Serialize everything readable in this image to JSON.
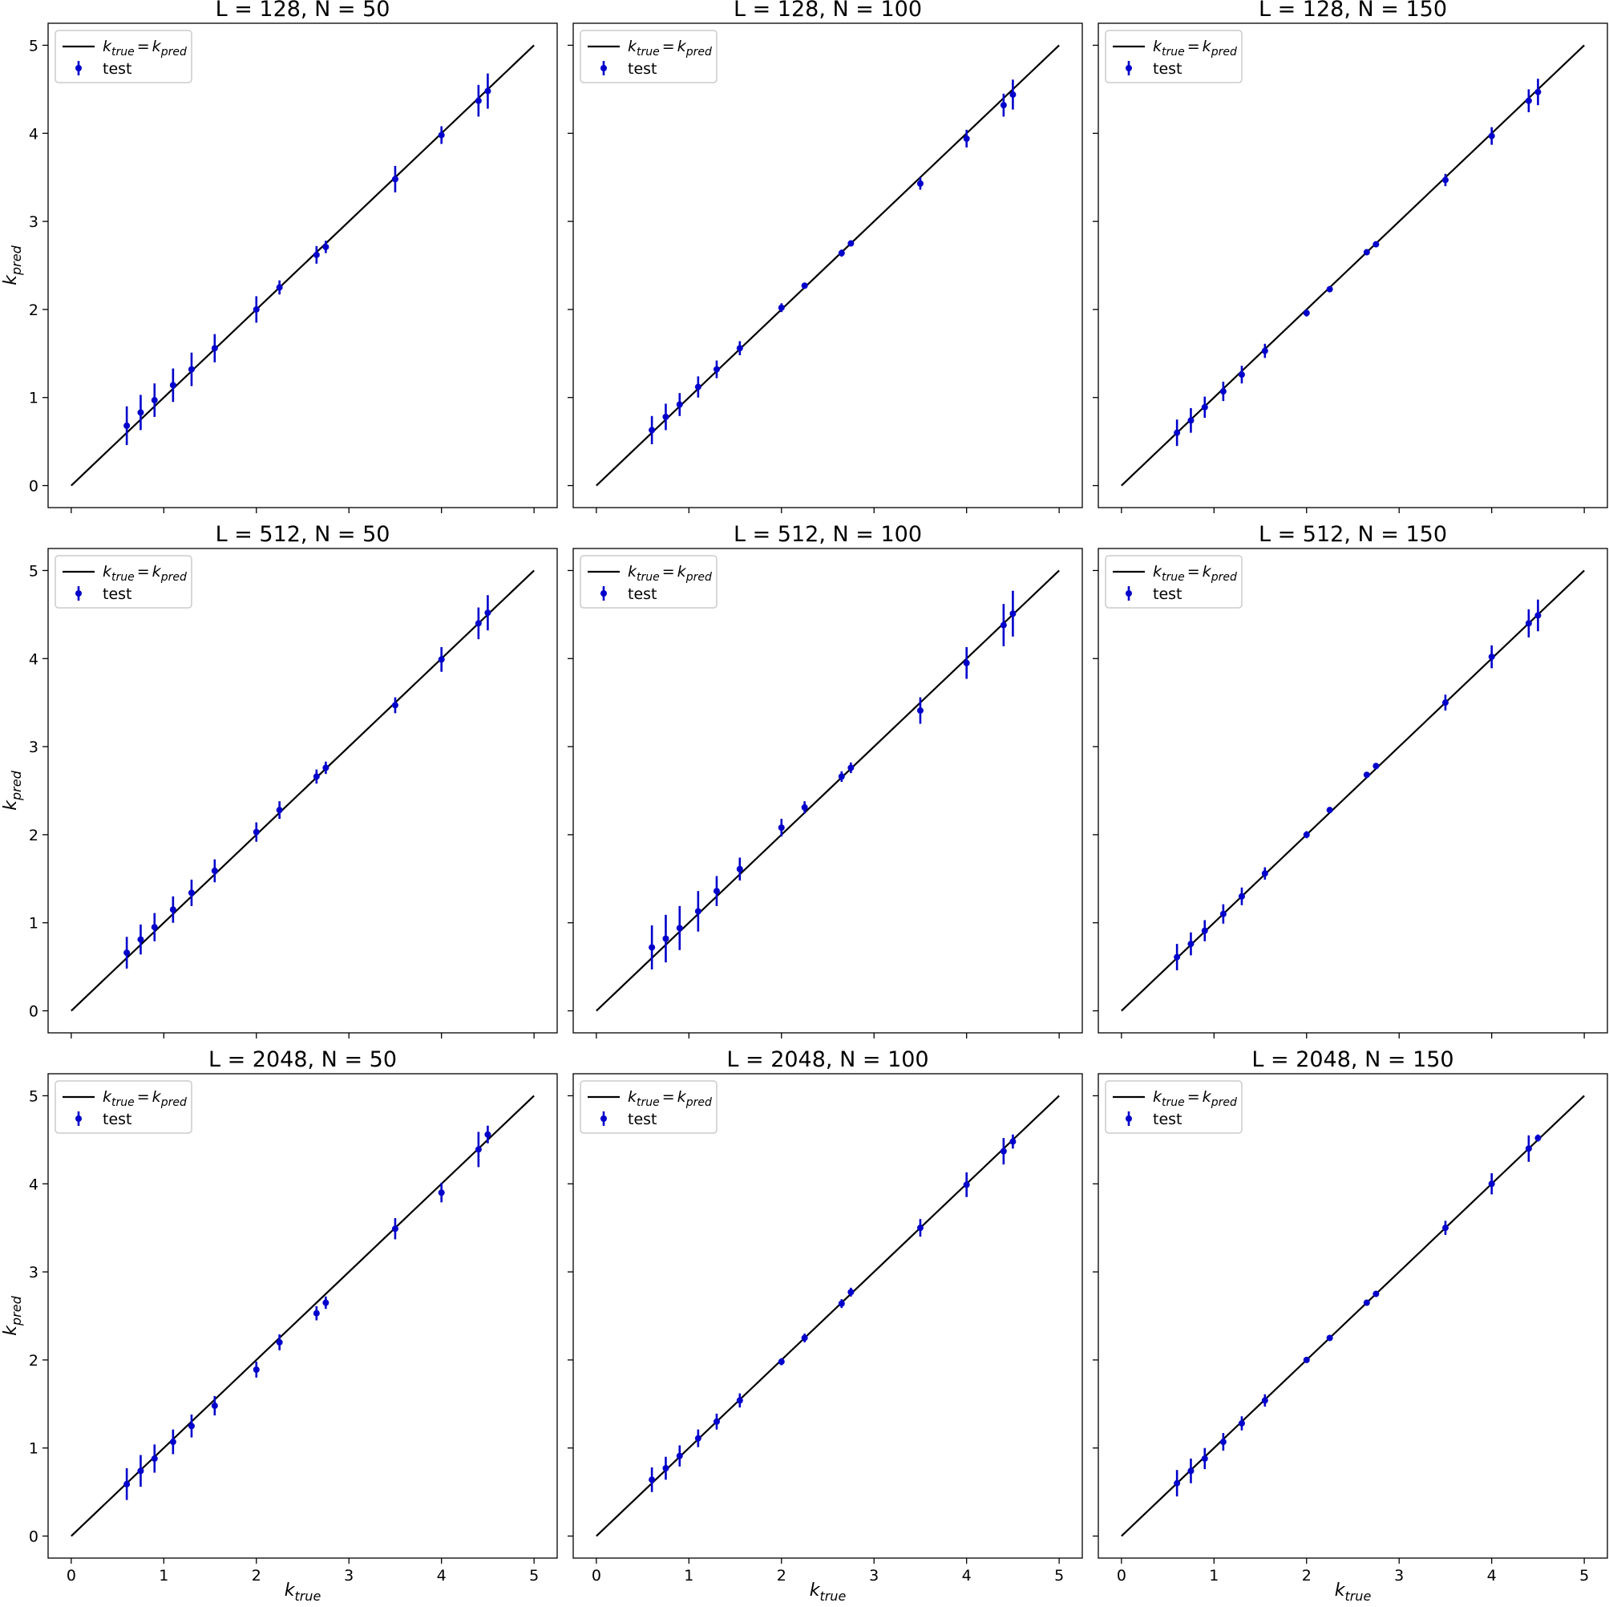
{
  "figure": {
    "ylabel_main": "k",
    "ylabel_sub": "pred",
    "xlabel_main": "k",
    "xlabel_sub": "true"
  },
  "legend": {
    "line_label": "k_true = k_pred",
    "line_left_main": "k",
    "line_left_sub": "true",
    "line_eq": "=",
    "line_right_main": "k",
    "line_right_sub": "pred",
    "points_label": "test"
  },
  "colors": {
    "points": "#0000cc",
    "line": "#000000",
    "frame": "#000000",
    "legend_border": "#cccccc"
  },
  "chart_data": [
    {
      "type": "scatter",
      "title": "L = 128, N = 50",
      "xlabel": "k_true",
      "ylabel": "k_pred",
      "xlim": [
        -0.25,
        5.25
      ],
      "ylim": [
        -0.25,
        5.25
      ],
      "xticks": [
        0,
        1,
        2,
        3,
        4,
        5
      ],
      "yticks": [
        0,
        1,
        2,
        3,
        4,
        5
      ],
      "grid": false,
      "legend": "top-left",
      "x": [
        0.6,
        0.75,
        0.9,
        1.1,
        1.3,
        1.55,
        2.0,
        2.25,
        2.65,
        2.75,
        3.5,
        4.0,
        4.4,
        4.5
      ],
      "y": [
        0.68,
        0.83,
        0.97,
        1.14,
        1.32,
        1.56,
        2.0,
        2.25,
        2.62,
        2.71,
        3.48,
        3.98,
        4.37,
        4.48
      ],
      "err": [
        0.22,
        0.2,
        0.19,
        0.19,
        0.19,
        0.16,
        0.15,
        0.08,
        0.1,
        0.07,
        0.15,
        0.1,
        0.18,
        0.2
      ]
    },
    {
      "type": "scatter",
      "title": "L = 128, N = 100",
      "xlabel": "k_true",
      "ylabel": "k_pred",
      "xlim": [
        -0.25,
        5.25
      ],
      "ylim": [
        -0.25,
        5.25
      ],
      "xticks": [
        0,
        1,
        2,
        3,
        4,
        5
      ],
      "yticks": [
        0,
        1,
        2,
        3,
        4,
        5
      ],
      "grid": false,
      "legend": "top-left",
      "x": [
        0.6,
        0.75,
        0.9,
        1.1,
        1.3,
        1.55,
        2.0,
        2.25,
        2.65,
        2.75,
        3.5,
        4.0,
        4.4,
        4.5
      ],
      "y": [
        0.63,
        0.78,
        0.92,
        1.12,
        1.32,
        1.56,
        2.02,
        2.27,
        2.64,
        2.75,
        3.43,
        3.94,
        4.32,
        4.44
      ],
      "err": [
        0.16,
        0.15,
        0.13,
        0.12,
        0.1,
        0.08,
        0.05,
        0.03,
        0.04,
        0.03,
        0.07,
        0.1,
        0.13,
        0.17
      ]
    },
    {
      "type": "scatter",
      "title": "L = 128, N = 150",
      "xlabel": "k_true",
      "ylabel": "k_pred",
      "xlim": [
        -0.25,
        5.25
      ],
      "ylim": [
        -0.25,
        5.25
      ],
      "xticks": [
        0,
        1,
        2,
        3,
        4,
        5
      ],
      "yticks": [
        0,
        1,
        2,
        3,
        4,
        5
      ],
      "grid": false,
      "legend": "top-left",
      "x": [
        0.6,
        0.75,
        0.9,
        1.1,
        1.3,
        1.55,
        2.0,
        2.25,
        2.65,
        2.75,
        3.5,
        4.0,
        4.4,
        4.5
      ],
      "y": [
        0.6,
        0.74,
        0.89,
        1.07,
        1.26,
        1.53,
        1.96,
        2.23,
        2.65,
        2.74,
        3.47,
        3.97,
        4.37,
        4.47
      ],
      "err": [
        0.15,
        0.14,
        0.12,
        0.11,
        0.1,
        0.08,
        0.04,
        0.03,
        0.03,
        0.03,
        0.07,
        0.1,
        0.13,
        0.15
      ]
    },
    {
      "type": "scatter",
      "title": "L = 512, N = 50",
      "xlabel": "k_true",
      "ylabel": "k_pred",
      "xlim": [
        -0.25,
        5.25
      ],
      "ylim": [
        -0.25,
        5.25
      ],
      "xticks": [
        0,
        1,
        2,
        3,
        4,
        5
      ],
      "yticks": [
        0,
        1,
        2,
        3,
        4,
        5
      ],
      "grid": false,
      "legend": "top-left",
      "x": [
        0.6,
        0.75,
        0.9,
        1.1,
        1.3,
        1.55,
        2.0,
        2.25,
        2.65,
        2.75,
        3.5,
        4.0,
        4.4,
        4.5
      ],
      "y": [
        0.66,
        0.81,
        0.95,
        1.15,
        1.34,
        1.59,
        2.03,
        2.28,
        2.66,
        2.76,
        3.47,
        3.99,
        4.4,
        4.52
      ],
      "err": [
        0.18,
        0.17,
        0.16,
        0.15,
        0.15,
        0.13,
        0.11,
        0.1,
        0.08,
        0.07,
        0.09,
        0.14,
        0.18,
        0.2
      ]
    },
    {
      "type": "scatter",
      "title": "L = 512, N = 100",
      "xlabel": "k_true",
      "ylabel": "k_pred",
      "xlim": [
        -0.25,
        5.25
      ],
      "ylim": [
        -0.25,
        5.25
      ],
      "xticks": [
        0,
        1,
        2,
        3,
        4,
        5
      ],
      "yticks": [
        0,
        1,
        2,
        3,
        4,
        5
      ],
      "grid": false,
      "legend": "top-left",
      "x": [
        0.6,
        0.75,
        0.9,
        1.1,
        1.3,
        1.55,
        2.0,
        2.25,
        2.65,
        2.75,
        3.5,
        4.0,
        4.4,
        4.5
      ],
      "y": [
        0.72,
        0.82,
        0.94,
        1.13,
        1.36,
        1.61,
        2.08,
        2.31,
        2.66,
        2.76,
        3.41,
        3.95,
        4.38,
        4.51
      ],
      "err": [
        0.25,
        0.27,
        0.25,
        0.23,
        0.17,
        0.13,
        0.1,
        0.07,
        0.06,
        0.06,
        0.15,
        0.18,
        0.24,
        0.26
      ]
    },
    {
      "type": "scatter",
      "title": "L = 512, N = 150",
      "xlabel": "k_true",
      "ylabel": "k_pred",
      "xlim": [
        -0.25,
        5.25
      ],
      "ylim": [
        -0.25,
        5.25
      ],
      "xticks": [
        0,
        1,
        2,
        3,
        4,
        5
      ],
      "yticks": [
        0,
        1,
        2,
        3,
        4,
        5
      ],
      "grid": false,
      "legend": "top-left",
      "x": [
        0.6,
        0.75,
        0.9,
        1.1,
        1.3,
        1.55,
        2.0,
        2.25,
        2.65,
        2.75,
        3.5,
        4.0,
        4.4,
        4.5
      ],
      "y": [
        0.61,
        0.76,
        0.91,
        1.1,
        1.3,
        1.56,
        2.0,
        2.28,
        2.68,
        2.78,
        3.5,
        4.02,
        4.4,
        4.49
      ],
      "err": [
        0.15,
        0.13,
        0.12,
        0.11,
        0.1,
        0.07,
        0.04,
        0.03,
        0.03,
        0.03,
        0.09,
        0.13,
        0.16,
        0.18
      ]
    },
    {
      "type": "scatter",
      "title": "L = 2048, N = 50",
      "xlabel": "k_true",
      "ylabel": "k_pred",
      "xlim": [
        -0.25,
        5.25
      ],
      "ylim": [
        -0.25,
        5.25
      ],
      "xticks": [
        0,
        1,
        2,
        3,
        4,
        5
      ],
      "yticks": [
        0,
        1,
        2,
        3,
        4,
        5
      ],
      "grid": false,
      "legend": "top-left",
      "x": [
        0.6,
        0.75,
        0.9,
        1.1,
        1.3,
        1.55,
        2.0,
        2.25,
        2.65,
        2.75,
        3.5,
        4.0,
        4.4,
        4.5
      ],
      "y": [
        0.59,
        0.74,
        0.88,
        1.07,
        1.25,
        1.48,
        1.89,
        2.2,
        2.53,
        2.65,
        3.49,
        3.9,
        4.39,
        4.56
      ],
      "err": [
        0.18,
        0.18,
        0.16,
        0.14,
        0.13,
        0.11,
        0.09,
        0.09,
        0.08,
        0.07,
        0.12,
        0.11,
        0.2,
        0.1
      ]
    },
    {
      "type": "scatter",
      "title": "L = 2048, N = 100",
      "xlabel": "k_true",
      "ylabel": "k_pred",
      "xlim": [
        -0.25,
        5.25
      ],
      "ylim": [
        -0.25,
        5.25
      ],
      "xticks": [
        0,
        1,
        2,
        3,
        4,
        5
      ],
      "yticks": [
        0,
        1,
        2,
        3,
        4,
        5
      ],
      "grid": false,
      "legend": "top-left",
      "x": [
        0.6,
        0.75,
        0.9,
        1.1,
        1.3,
        1.55,
        2.0,
        2.25,
        2.65,
        2.75,
        3.5,
        4.0,
        4.4,
        4.5
      ],
      "y": [
        0.64,
        0.77,
        0.91,
        1.11,
        1.3,
        1.54,
        1.98,
        2.25,
        2.64,
        2.77,
        3.5,
        3.99,
        4.37,
        4.48
      ],
      "err": [
        0.14,
        0.13,
        0.12,
        0.1,
        0.09,
        0.08,
        0.04,
        0.05,
        0.05,
        0.05,
        0.1,
        0.14,
        0.15,
        0.08
      ]
    },
    {
      "type": "scatter",
      "title": "L = 2048, N = 150",
      "xlabel": "k_true",
      "ylabel": "k_pred",
      "xlim": [
        -0.25,
        5.25
      ],
      "ylim": [
        -0.25,
        5.25
      ],
      "xticks": [
        0,
        1,
        2,
        3,
        4,
        5
      ],
      "yticks": [
        0,
        1,
        2,
        3,
        4,
        5
      ],
      "grid": false,
      "legend": "top-left",
      "x": [
        0.6,
        0.75,
        0.9,
        1.1,
        1.3,
        1.55,
        2.0,
        2.25,
        2.65,
        2.75,
        3.5,
        4.0,
        4.4,
        4.5
      ],
      "y": [
        0.6,
        0.74,
        0.88,
        1.07,
        1.28,
        1.54,
        2.0,
        2.25,
        2.65,
        2.75,
        3.5,
        4.0,
        4.4,
        4.52
      ],
      "err": [
        0.15,
        0.14,
        0.12,
        0.1,
        0.08,
        0.07,
        0.03,
        0.03,
        0.03,
        0.03,
        0.08,
        0.12,
        0.15,
        0.04
      ]
    }
  ]
}
